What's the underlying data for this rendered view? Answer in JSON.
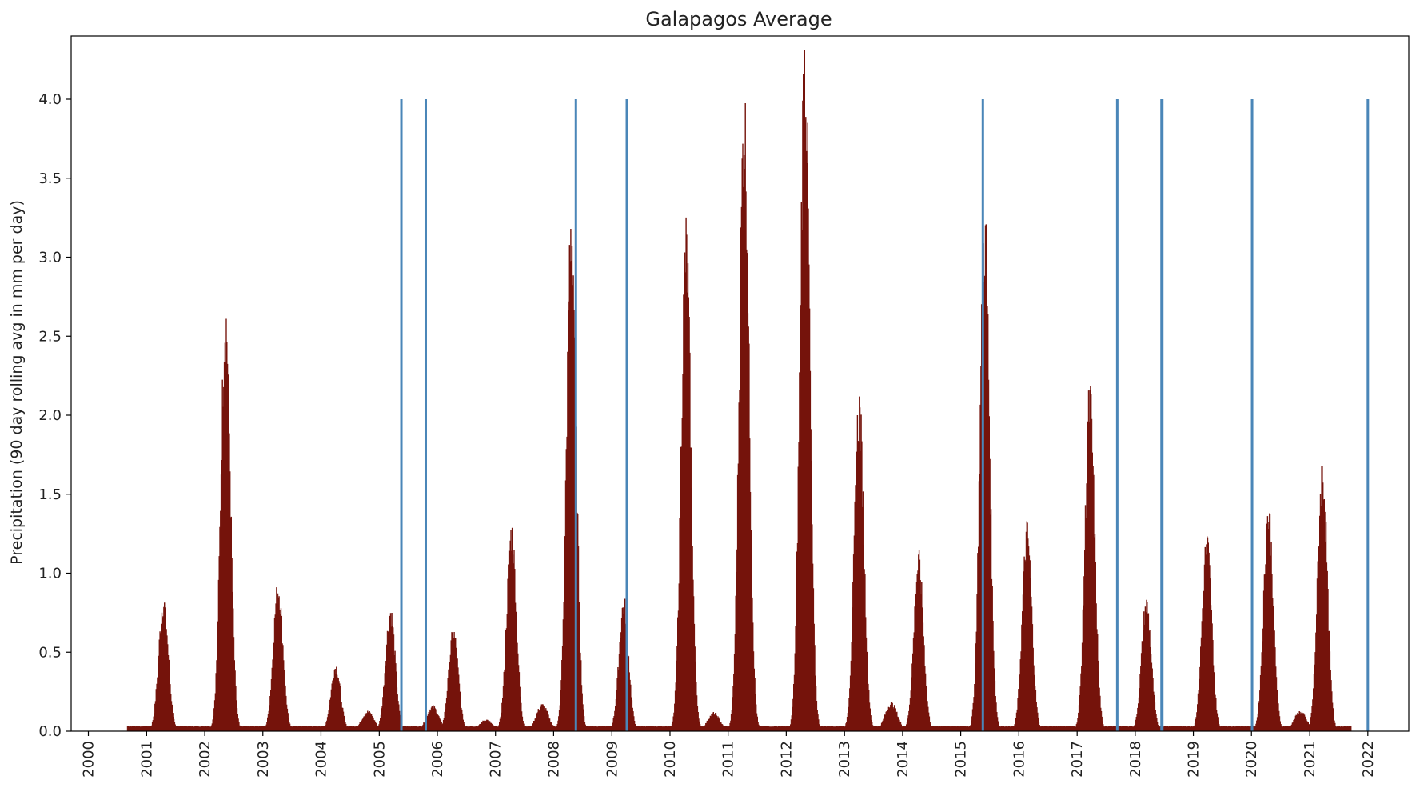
{
  "colors": {
    "bar": "#75130b",
    "vline": "#4a86b8",
    "axis": "#000000",
    "background": "#ffffff"
  },
  "chart_data": {
    "type": "bar",
    "title": "Galapagos Average",
    "xlabel": "",
    "ylabel": "Precipitation (90 day rolling avg in mm per day)",
    "xlim": [
      "1999-09-15",
      "2022-09-15"
    ],
    "ylim": [
      0,
      4.4
    ],
    "x_ticks": [
      "2000",
      "2001",
      "2002",
      "2003",
      "2004",
      "2005",
      "2006",
      "2007",
      "2008",
      "2009",
      "2010",
      "2011",
      "2012",
      "2013",
      "2014",
      "2015",
      "2016",
      "2017",
      "2018",
      "2019",
      "2020",
      "2021",
      "2022"
    ],
    "y_ticks": [
      "0.0",
      "0.5",
      "1.0",
      "1.5",
      "2.0",
      "2.5",
      "3.0",
      "3.5",
      "4.0"
    ],
    "data_range": [
      "2000-09-01",
      "2021-09-15"
    ],
    "vertical_lines": {
      "y_range": [
        0,
        4.0
      ],
      "dates": [
        "2005-05-20",
        "2005-10-20",
        "2008-05-20",
        "2009-04-05",
        "2015-05-20",
        "2017-09-10",
        "2018-06-15",
        "2018-06-20",
        "2020-01-05",
        "2022-01-01"
      ]
    },
    "baseline": 0.03,
    "peaks": [
      {
        "date": "2001-04-15",
        "value": 0.8
      },
      {
        "date": "2002-05-10",
        "value": 2.58
      },
      {
        "date": "2003-04-05",
        "value": 0.89
      },
      {
        "date": "2004-04-01",
        "value": 0.4
      },
      {
        "date": "2004-10-20",
        "value": 0.12
      },
      {
        "date": "2005-03-10",
        "value": 0.74
      },
      {
        "date": "2005-12-01",
        "value": 0.15
      },
      {
        "date": "2006-04-10",
        "value": 0.61
      },
      {
        "date": "2006-11-01",
        "value": 0.07
      },
      {
        "date": "2007-04-10",
        "value": 1.24
      },
      {
        "date": "2007-10-20",
        "value": 0.16
      },
      {
        "date": "2008-04-20",
        "value": 3.13
      },
      {
        "date": "2009-03-15",
        "value": 0.79
      },
      {
        "date": "2010-04-10",
        "value": 3.02
      },
      {
        "date": "2010-10-01",
        "value": 0.11
      },
      {
        "date": "2011-04-10",
        "value": 3.82
      },
      {
        "date": "2012-04-25",
        "value": 4.2
      },
      {
        "date": "2013-04-01",
        "value": 2.01
      },
      {
        "date": "2013-10-20",
        "value": 0.17
      },
      {
        "date": "2014-04-10",
        "value": 1.05
      },
      {
        "date": "2015-05-30",
        "value": 3.11
      },
      {
        "date": "2016-02-20",
        "value": 1.23
      },
      {
        "date": "2017-03-20",
        "value": 2.05
      },
      {
        "date": "2018-03-10",
        "value": 0.79
      },
      {
        "date": "2019-03-25",
        "value": 1.17
      },
      {
        "date": "2020-04-15",
        "value": 1.36
      },
      {
        "date": "2020-11-01",
        "value": 0.12
      },
      {
        "date": "2021-03-20",
        "value": 1.62
      }
    ]
  }
}
